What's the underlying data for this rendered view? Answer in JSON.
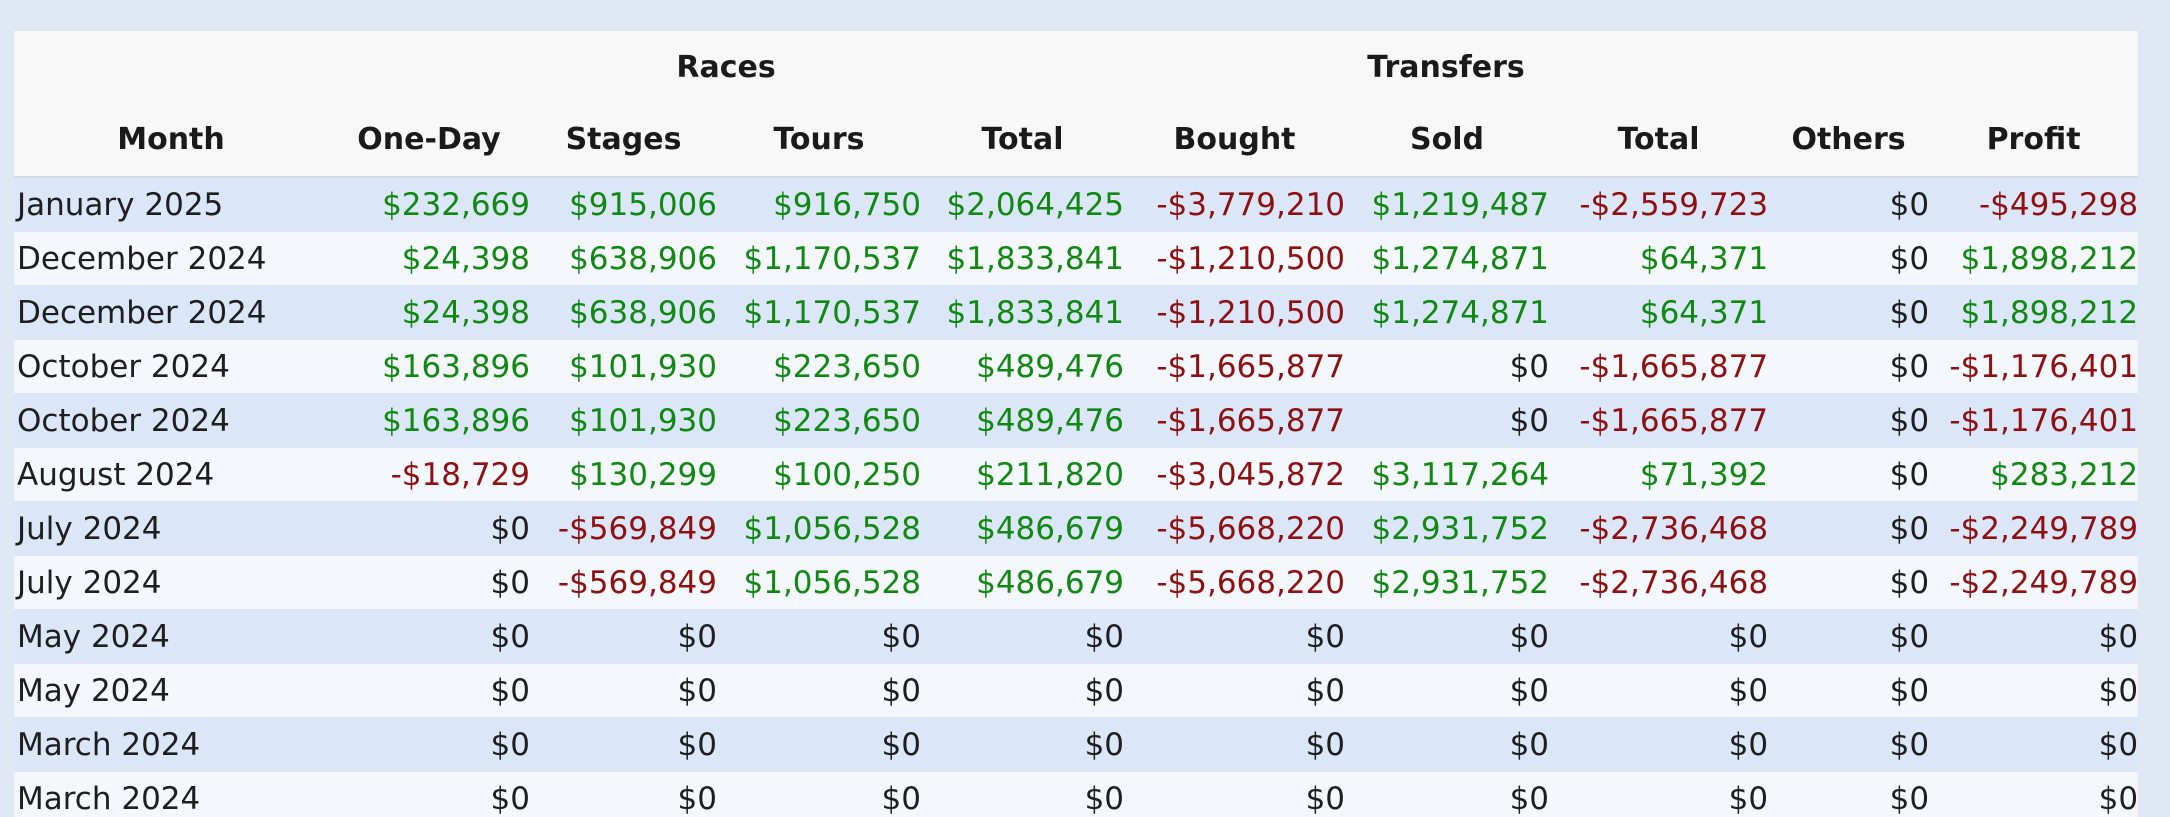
{
  "table": {
    "groups": {
      "races": "Races",
      "transfers": "Transfers"
    },
    "columns": [
      "Month",
      "One-Day",
      "Stages",
      "Tours",
      "Total",
      "Bought",
      "Sold",
      "Total",
      "Others",
      "Profit"
    ],
    "rows": [
      [
        "January 2025",
        "$232,669",
        "$915,006",
        "$916,750",
        "$2,064,425",
        "-$3,779,210",
        "$1,219,487",
        "-$2,559,723",
        "$0",
        "-$495,298"
      ],
      [
        "December 2024",
        "$24,398",
        "$638,906",
        "$1,170,537",
        "$1,833,841",
        "-$1,210,500",
        "$1,274,871",
        "$64,371",
        "$0",
        "$1,898,212"
      ],
      [
        "December 2024",
        "$24,398",
        "$638,906",
        "$1,170,537",
        "$1,833,841",
        "-$1,210,500",
        "$1,274,871",
        "$64,371",
        "$0",
        "$1,898,212"
      ],
      [
        "October 2024",
        "$163,896",
        "$101,930",
        "$223,650",
        "$489,476",
        "-$1,665,877",
        "$0",
        "-$1,665,877",
        "$0",
        "-$1,176,401"
      ],
      [
        "October 2024",
        "$163,896",
        "$101,930",
        "$223,650",
        "$489,476",
        "-$1,665,877",
        "$0",
        "-$1,665,877",
        "$0",
        "-$1,176,401"
      ],
      [
        "August 2024",
        "-$18,729",
        "$130,299",
        "$100,250",
        "$211,820",
        "-$3,045,872",
        "$3,117,264",
        "$71,392",
        "$0",
        "$283,212"
      ],
      [
        "July 2024",
        "$0",
        "-$569,849",
        "$1,056,528",
        "$486,679",
        "-$5,668,220",
        "$2,931,752",
        "-$2,736,468",
        "$0",
        "-$2,249,789"
      ],
      [
        "July 2024",
        "$0",
        "-$569,849",
        "$1,056,528",
        "$486,679",
        "-$5,668,220",
        "$2,931,752",
        "-$2,736,468",
        "$0",
        "-$2,249,789"
      ],
      [
        "May 2024",
        "$0",
        "$0",
        "$0",
        "$0",
        "$0",
        "$0",
        "$0",
        "$0",
        "$0"
      ],
      [
        "May 2024",
        "$0",
        "$0",
        "$0",
        "$0",
        "$0",
        "$0",
        "$0",
        "$0",
        "$0"
      ],
      [
        "March 2024",
        "$0",
        "$0",
        "$0",
        "$0",
        "$0",
        "$0",
        "$0",
        "$0",
        "$0"
      ],
      [
        "March 2024",
        "$0",
        "$0",
        "$0",
        "$0",
        "$0",
        "$0",
        "$0",
        "$0",
        "$0"
      ]
    ]
  },
  "colors": {
    "positive": "#118811",
    "negative": "#8f1010",
    "zero": "#1e1e1e",
    "row_stripe": "#dbe7f8",
    "page_background": "#dfe8f3"
  }
}
